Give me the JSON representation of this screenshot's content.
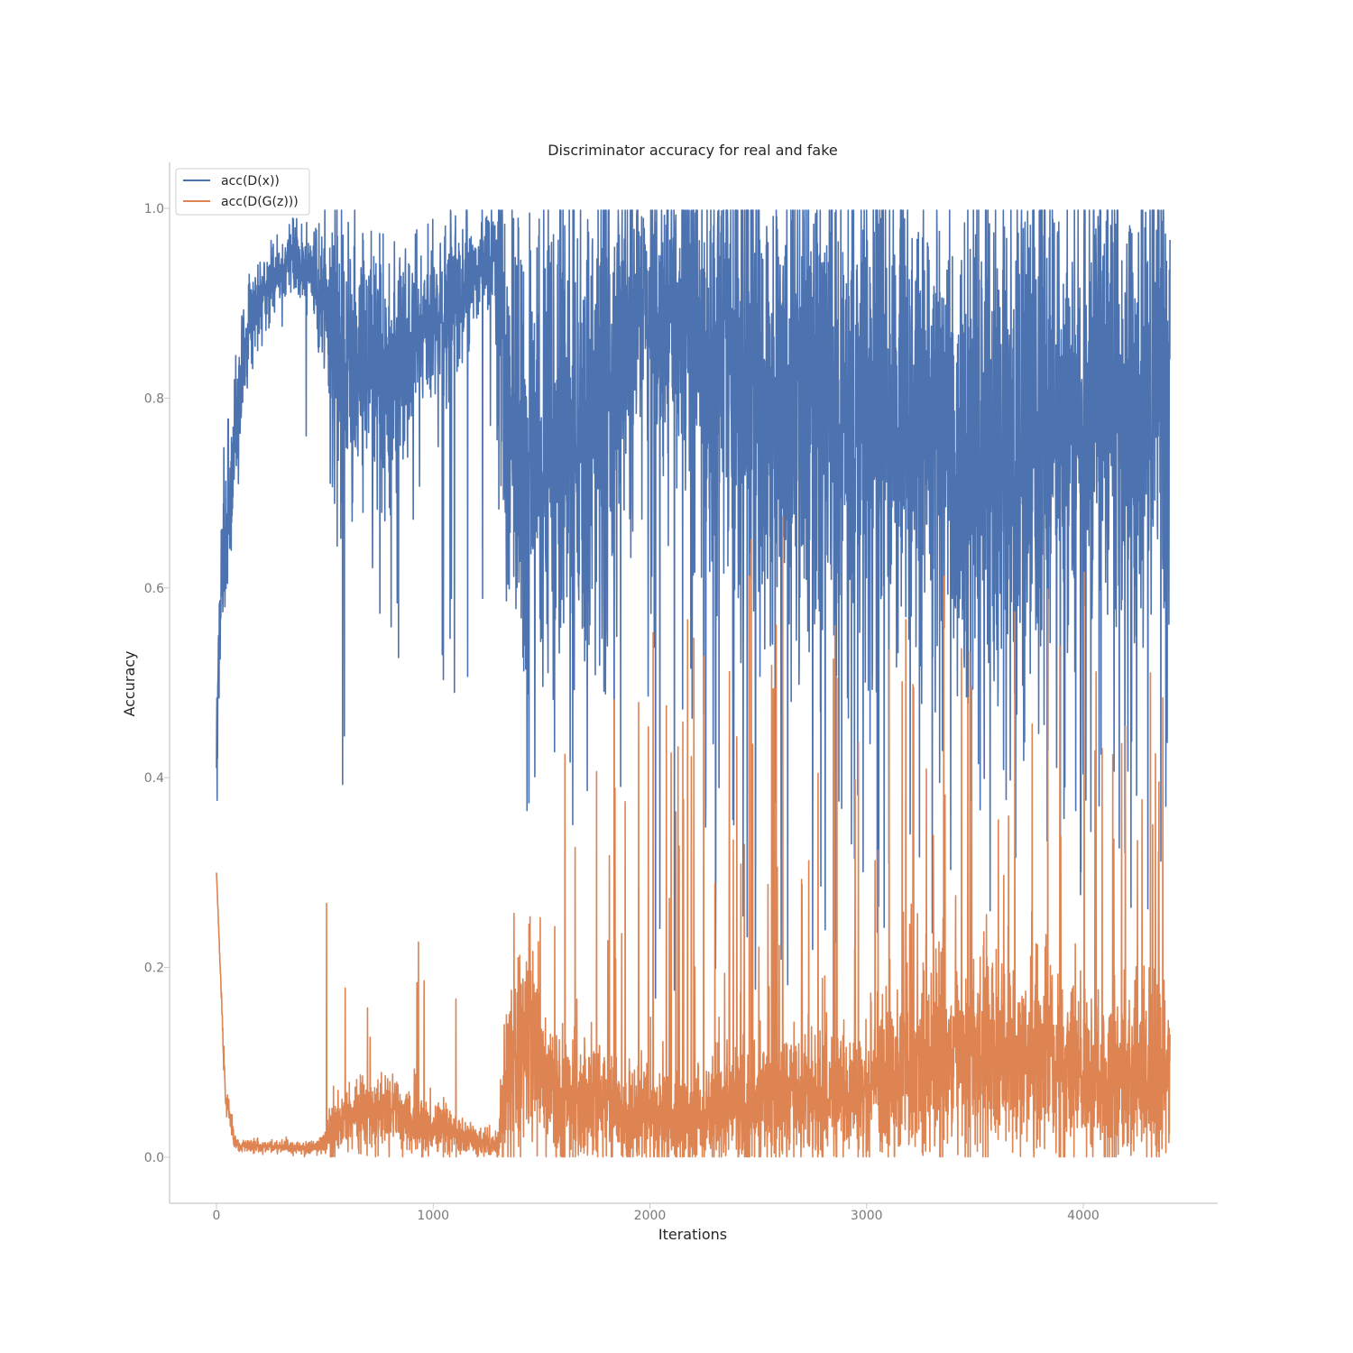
{
  "chart_data": {
    "type": "line",
    "title": "Discriminator accuracy for real and fake",
    "xlabel": "Iterations",
    "ylabel": "Accuracy",
    "xlim": [
      -220,
      4620
    ],
    "ylim": [
      -0.05,
      1.05
    ],
    "x_ticks": [
      0,
      1000,
      2000,
      3000,
      4000
    ],
    "x_tick_labels": [
      "0",
      "1000",
      "2000",
      "3000",
      "4000"
    ],
    "y_ticks": [
      0.0,
      0.2,
      0.4,
      0.6,
      0.8,
      1.0
    ],
    "y_tick_labels": [
      "0.0",
      "0.2",
      "0.4",
      "0.6",
      "0.8",
      "1.0"
    ],
    "grid": false,
    "legend_position": "top-left",
    "x_range": [
      0,
      4400
    ],
    "series": [
      {
        "name": "acc(D(x))",
        "color": "#4c72b0",
        "profile": [
          [
            0,
            0.44,
            0.05
          ],
          [
            20,
            0.6,
            0.05
          ],
          [
            50,
            0.68,
            0.05
          ],
          [
            100,
            0.8,
            0.04
          ],
          [
            150,
            0.88,
            0.03
          ],
          [
            200,
            0.91,
            0.02
          ],
          [
            300,
            0.93,
            0.02
          ],
          [
            350,
            0.95,
            0.02
          ],
          [
            450,
            0.93,
            0.03
          ],
          [
            500,
            0.9,
            0.06
          ],
          [
            550,
            0.85,
            0.1
          ],
          [
            600,
            0.83,
            0.1
          ],
          [
            700,
            0.85,
            0.08
          ],
          [
            800,
            0.82,
            0.1
          ],
          [
            850,
            0.84,
            0.08
          ],
          [
            900,
            0.87,
            0.06
          ],
          [
            1000,
            0.89,
            0.05
          ],
          [
            1100,
            0.9,
            0.05
          ],
          [
            1200,
            0.94,
            0.03
          ],
          [
            1280,
            0.95,
            0.03
          ],
          [
            1320,
            0.85,
            0.12
          ],
          [
            1400,
            0.75,
            0.12
          ],
          [
            1500,
            0.75,
            0.14
          ],
          [
            1600,
            0.78,
            0.15
          ],
          [
            1800,
            0.8,
            0.15
          ],
          [
            1900,
            0.88,
            0.09
          ],
          [
            2000,
            0.9,
            0.08
          ],
          [
            2100,
            0.9,
            0.08
          ],
          [
            2300,
            0.85,
            0.12
          ],
          [
            2500,
            0.82,
            0.14
          ],
          [
            2800,
            0.8,
            0.14
          ],
          [
            3000,
            0.8,
            0.13
          ],
          [
            3500,
            0.75,
            0.15
          ],
          [
            4000,
            0.8,
            0.14
          ],
          [
            4400,
            0.8,
            0.14
          ]
        ],
        "spike_rate": [
          [
            0,
            0.0
          ],
          [
            500,
            0.02
          ],
          [
            1300,
            0.02
          ],
          [
            1400,
            0.05
          ],
          [
            1600,
            0.06
          ],
          [
            4400,
            0.06
          ]
        ],
        "spike_min": [
          [
            0,
            0.7
          ],
          [
            500,
            0.35
          ],
          [
            1300,
            0.45
          ],
          [
            1500,
            0.3
          ],
          [
            2000,
            0.15
          ],
          [
            4400,
            0.25
          ]
        ]
      },
      {
        "name": "acc(D(G(z)))",
        "color": "#dd8452",
        "profile": [
          [
            0,
            0.3,
            0.0
          ],
          [
            40,
            0.07,
            0.01
          ],
          [
            80,
            0.02,
            0.005
          ],
          [
            100,
            0.012,
            0.004
          ],
          [
            450,
            0.01,
            0.004
          ],
          [
            500,
            0.015,
            0.007
          ],
          [
            520,
            0.025,
            0.015
          ],
          [
            600,
            0.04,
            0.02
          ],
          [
            800,
            0.05,
            0.025
          ],
          [
            900,
            0.035,
            0.02
          ],
          [
            1100,
            0.025,
            0.012
          ],
          [
            1250,
            0.015,
            0.008
          ],
          [
            1300,
            0.012,
            0.008
          ],
          [
            1320,
            0.06,
            0.04
          ],
          [
            1400,
            0.11,
            0.06
          ],
          [
            1500,
            0.09,
            0.05
          ],
          [
            1600,
            0.06,
            0.04
          ],
          [
            1800,
            0.05,
            0.035
          ],
          [
            2000,
            0.04,
            0.03
          ],
          [
            2200,
            0.04,
            0.03
          ],
          [
            2400,
            0.05,
            0.035
          ],
          [
            2600,
            0.06,
            0.04
          ],
          [
            2900,
            0.06,
            0.04
          ],
          [
            3200,
            0.09,
            0.05
          ],
          [
            3400,
            0.11,
            0.06
          ],
          [
            3700,
            0.1,
            0.05
          ],
          [
            4000,
            0.09,
            0.05
          ],
          [
            4400,
            0.08,
            0.05
          ]
        ],
        "spike_rate": [
          [
            0,
            0.0
          ],
          [
            500,
            0.01
          ],
          [
            1300,
            0.01
          ],
          [
            1350,
            0.05
          ],
          [
            1600,
            0.05
          ],
          [
            4400,
            0.06
          ]
        ],
        "spike_max": [
          [
            0,
            0.05
          ],
          [
            500,
            0.3
          ],
          [
            1300,
            0.2
          ],
          [
            1400,
            0.3
          ],
          [
            1600,
            0.45
          ],
          [
            2200,
            0.6
          ],
          [
            2700,
            0.75
          ],
          [
            3000,
            0.6
          ],
          [
            4400,
            0.65
          ]
        ]
      }
    ]
  }
}
